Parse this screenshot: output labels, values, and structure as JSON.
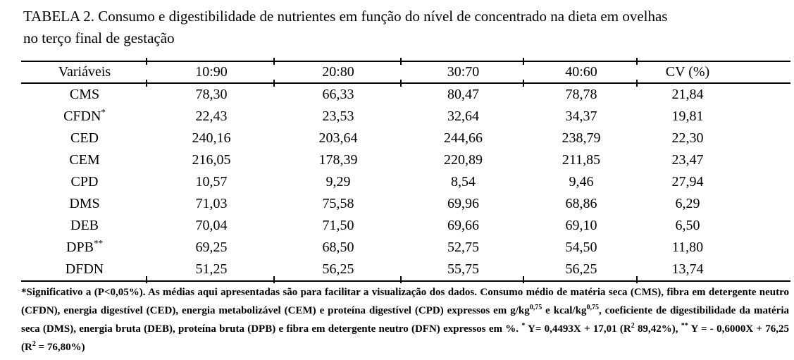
{
  "document": {
    "title_line1": "TABELA 2. Consumo e digestibilidade de nutrientes em função do nível de concentrado na dieta em ovelhas",
    "title_line2": "no terço final de gestação"
  },
  "table": {
    "columns": [
      "Variáveis",
      "10:90",
      "20:80",
      "30:70",
      "40:60",
      "CV (%)"
    ],
    "rows": [
      {
        "variable": "CMS",
        "sup": "",
        "values": [
          "78,30",
          "66,33",
          "80,47",
          "78,78",
          "21,84"
        ]
      },
      {
        "variable": "CFDN",
        "sup": "*",
        "values": [
          "22,43",
          "23,53",
          "32,64",
          "34,37",
          "19,81"
        ]
      },
      {
        "variable": "CED",
        "sup": "",
        "values": [
          "240,16",
          "203,64",
          "244,66",
          "238,79",
          "22,30"
        ]
      },
      {
        "variable": "CEM",
        "sup": "",
        "values": [
          "216,05",
          "178,39",
          "220,89",
          "211,85",
          "23,47"
        ]
      },
      {
        "variable": "CPD",
        "sup": "",
        "values": [
          "10,57",
          "9,29",
          "8,54",
          "9,46",
          "27,94"
        ]
      },
      {
        "variable": "DMS",
        "sup": "",
        "values": [
          "71,03",
          "75,58",
          "69,96",
          "68,86",
          "6,29"
        ]
      },
      {
        "variable": "DEB",
        "sup": "",
        "values": [
          "70,04",
          "71,50",
          "69,66",
          "69,10",
          "6,50"
        ]
      },
      {
        "variable": "DPB",
        "sup": "**",
        "values": [
          "69,25",
          "68,50",
          "52,75",
          "54,50",
          "11,80"
        ]
      },
      {
        "variable": "DFDN",
        "sup": "",
        "values": [
          "51,25",
          "56,25",
          "55,75",
          "56,25",
          "13,74"
        ]
      }
    ]
  },
  "footnote": {
    "segments": [
      {
        "text": "*Significativo a (P<0,05%). As médias aqui apresentadas são para facilitar a visualização dos dados. Consumo médio de matéria seca (CMS), fibra em detergente neutro (CFDN), energia digestível (CED), energia metabolizável (CEM) e proteína digestível (CPD) expressos em g/kg",
        "sup": false
      },
      {
        "text": "0,75",
        "sup": true
      },
      {
        "text": " e kcal/kg",
        "sup": false
      },
      {
        "text": "0,75",
        "sup": true
      },
      {
        "text": ", coeficiente de digestibilidade da matéria seca (DMS), energia bruta (DEB), proteína bruta (DPB) e fibra em detergente neutro (DFN) expressos em %. ",
        "sup": false
      },
      {
        "text": "*",
        "sup": true
      },
      {
        "text": " Y= 0,4493X + 17,01 (R",
        "sup": false
      },
      {
        "text": "2",
        "sup": true
      },
      {
        "text": " 89,42%), ",
        "sup": false
      },
      {
        "text": "**",
        "sup": true
      },
      {
        "text": " Y = - 0,6000X + 76,25 (R",
        "sup": false
      },
      {
        "text": "2",
        "sup": true
      },
      {
        "text": " = 76,80%)",
        "sup": false
      }
    ]
  }
}
